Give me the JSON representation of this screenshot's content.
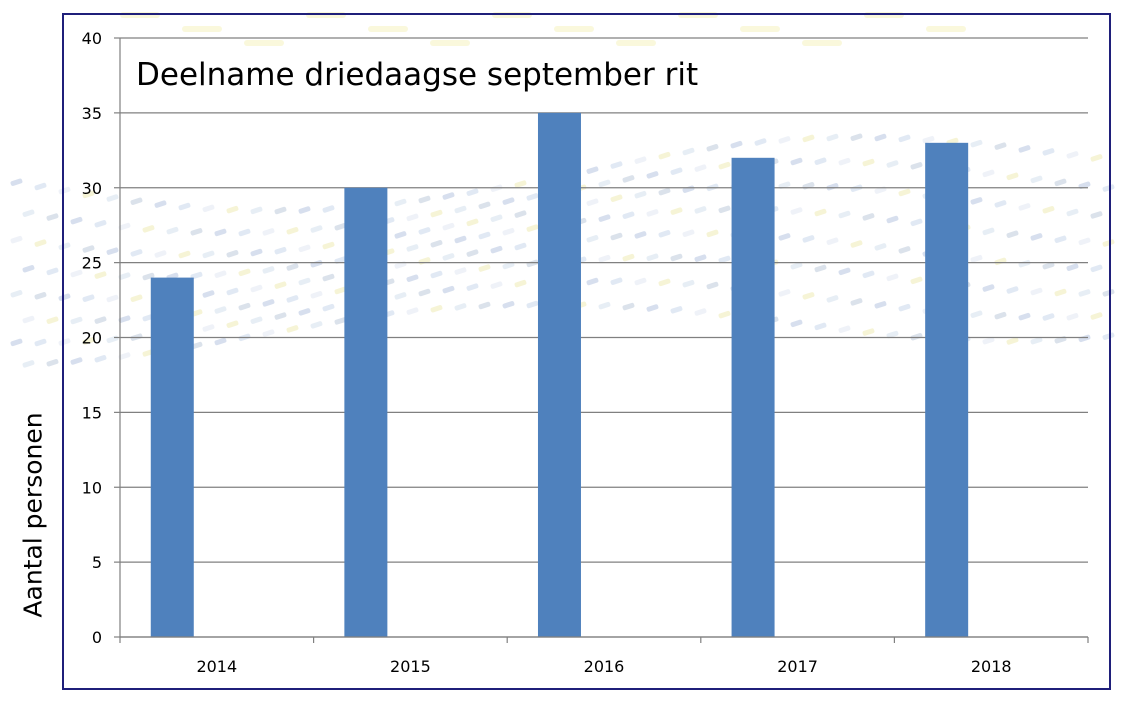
{
  "chart_data": {
    "type": "bar",
    "title": "Deelname driedaagse september rit",
    "xlabel": "",
    "ylabel": "Aantal personen",
    "categories": [
      "2014",
      "2015",
      "2016",
      "2017",
      "2018"
    ],
    "values": [
      24,
      30,
      35,
      32,
      33
    ],
    "ylim": [
      0,
      40
    ],
    "yticks": [
      0,
      5,
      10,
      15,
      20,
      25,
      30,
      35,
      40
    ],
    "grid": true,
    "legend": "none",
    "bar_color": "#4f81bd",
    "grid_color": "#808080",
    "frame_color": "#1f1f7a"
  }
}
